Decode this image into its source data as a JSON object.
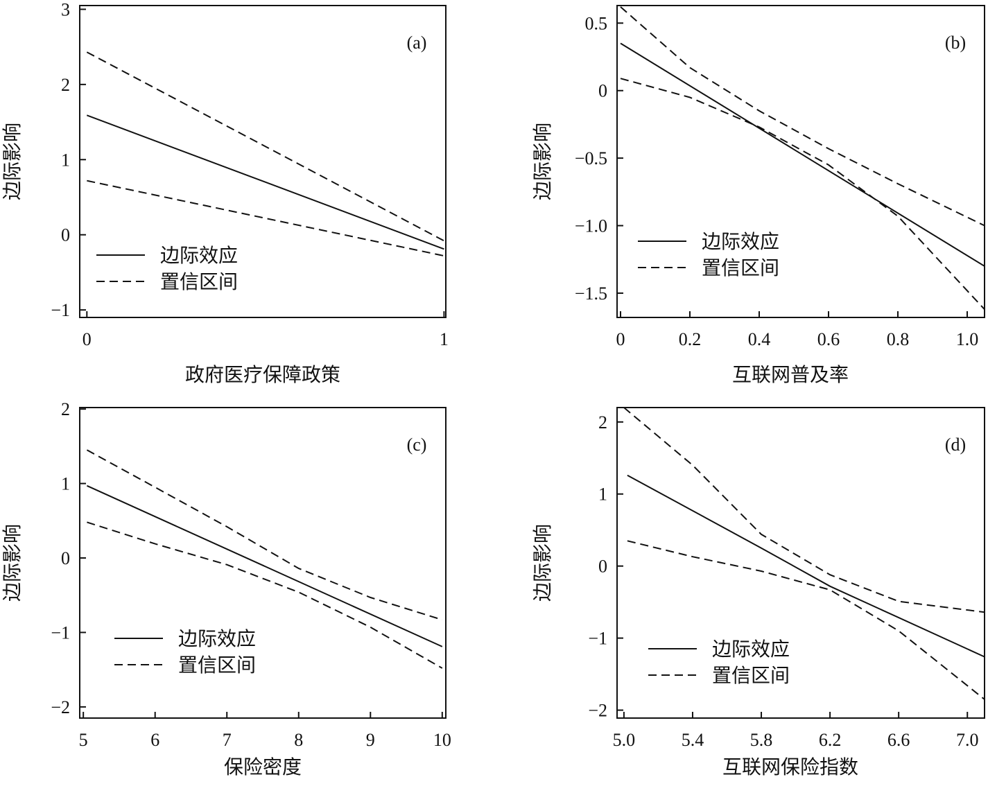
{
  "chart_data": [
    {
      "type": "line",
      "panel_label": "(a)",
      "xlabel": "政府医疗保障政策",
      "ylabel": "边际影响",
      "xlim": [
        -0.02,
        1.005
      ],
      "ylim": [
        -1.1,
        3.05
      ],
      "xticks": [
        0,
        1
      ],
      "xtick_labels": [
        "0",
        "1"
      ],
      "yticks": [
        -1,
        0,
        1,
        2,
        3
      ],
      "ytick_labels": [
        "−1",
        "0",
        "1",
        "2",
        "3"
      ],
      "legend": {
        "position": "bottom-left",
        "entries": [
          "边际效应",
          "置信区间"
        ]
      },
      "series": [
        {
          "name": "边际效应",
          "style": "solid",
          "x": [
            0,
            1
          ],
          "y": [
            1.59,
            -0.19
          ]
        },
        {
          "name": "置信区间上限",
          "style": "dashed",
          "x": [
            0,
            1
          ],
          "y": [
            2.43,
            -0.08
          ]
        },
        {
          "name": "置信区间下限",
          "style": "dashed",
          "x": [
            0,
            1
          ],
          "y": [
            0.72,
            -0.28
          ]
        }
      ]
    },
    {
      "type": "line",
      "panel_label": "(b)",
      "xlabel": "互联网普及率",
      "ylabel": "边际影响",
      "xlim": [
        -0.01,
        1.05
      ],
      "ylim": [
        -1.68,
        0.63
      ],
      "xticks": [
        0,
        0.2,
        0.4,
        0.6,
        0.8,
        1.0
      ],
      "xtick_labels": [
        "0",
        "0.2",
        "0.4",
        "0.6",
        "0.8",
        "1.0"
      ],
      "yticks": [
        0.5,
        0,
        -0.5,
        -1.0,
        -1.5
      ],
      "ytick_labels": [
        "0.5",
        "0",
        "−0.5",
        "−1.0",
        "−1.5"
      ],
      "legend": {
        "position": "bottom-left",
        "entries": [
          "边际效应",
          "置信区间"
        ]
      },
      "series": [
        {
          "name": "边际效应",
          "style": "solid",
          "x": [
            0,
            1.05
          ],
          "y": [
            0.35,
            -1.3
          ]
        },
        {
          "name": "置信区间上限",
          "style": "dashed",
          "x": [
            0,
            0.2,
            0.4,
            0.6,
            0.8,
            1.05
          ],
          "y": [
            0.62,
            0.17,
            -0.15,
            -0.43,
            -0.69,
            -1.0
          ]
        },
        {
          "name": "置信区间下限",
          "style": "dashed",
          "x": [
            0,
            0.2,
            0.4,
            0.6,
            0.8,
            1.05
          ],
          "y": [
            0.09,
            -0.05,
            -0.27,
            -0.55,
            -0.93,
            -1.62
          ]
        }
      ]
    },
    {
      "type": "line",
      "panel_label": "(c)",
      "xlabel": "保险密度",
      "ylabel": "边际影响",
      "xlim": [
        4.95,
        10.05
      ],
      "ylim": [
        -2.15,
        2.02
      ],
      "xticks": [
        5,
        6,
        7,
        8,
        9,
        10
      ],
      "xtick_labels": [
        "5",
        "6",
        "7",
        "8",
        "9",
        "10"
      ],
      "yticks": [
        -2,
        -1,
        0,
        1,
        2
      ],
      "ytick_labels": [
        "−2",
        "−1",
        "0",
        "1",
        "2"
      ],
      "legend": {
        "position": "bottom-left",
        "entries": [
          "边际效应",
          "置信区间"
        ]
      },
      "series": [
        {
          "name": "边际效应",
          "style": "solid",
          "x": [
            5.05,
            10
          ],
          "y": [
            0.97,
            -1.19
          ]
        },
        {
          "name": "置信区间上限",
          "style": "dashed",
          "x": [
            5.05,
            6,
            7,
            8,
            9,
            10
          ],
          "y": [
            1.45,
            0.95,
            0.42,
            -0.14,
            -0.53,
            -0.83
          ]
        },
        {
          "name": "置信区间下限",
          "style": "dashed",
          "x": [
            5.05,
            6,
            7,
            8,
            9,
            10
          ],
          "y": [
            0.48,
            0.19,
            -0.09,
            -0.46,
            -0.93,
            -1.48
          ]
        }
      ]
    },
    {
      "type": "line",
      "panel_label": "(d)",
      "xlabel": "互联网保险指数",
      "ylabel": "边际影响",
      "xlim": [
        4.96,
        7.1
      ],
      "ylim": [
        -2.11,
        2.2
      ],
      "xticks": [
        5.0,
        5.4,
        5.8,
        6.2,
        6.6,
        7.0
      ],
      "xtick_labels": [
        "5.0",
        "5.4",
        "5.8",
        "6.2",
        "6.6",
        "7.0"
      ],
      "yticks": [
        -2,
        -1,
        0,
        1,
        2
      ],
      "ytick_labels": [
        "−2",
        "−1",
        "0",
        "1",
        "2"
      ],
      "legend": {
        "position": "bottom-left",
        "entries": [
          "边际效应",
          "置信区间"
        ]
      },
      "series": [
        {
          "name": "边际效应",
          "style": "solid",
          "x": [
            5.02,
            5.8,
            6.2,
            7.1
          ],
          "y": [
            1.26,
            0.25,
            -0.28,
            -1.26
          ]
        },
        {
          "name": "置信区间上限",
          "style": "dashed",
          "x": [
            5.0,
            5.4,
            5.8,
            6.2,
            6.6,
            7.1
          ],
          "y": [
            2.2,
            1.4,
            0.44,
            -0.12,
            -0.49,
            -0.64
          ]
        },
        {
          "name": "置信区间下限",
          "style": "dashed",
          "x": [
            5.02,
            5.4,
            5.8,
            6.2,
            6.6,
            7.1
          ],
          "y": [
            0.35,
            0.13,
            -0.07,
            -0.33,
            -0.9,
            -1.85
          ]
        }
      ]
    }
  ]
}
